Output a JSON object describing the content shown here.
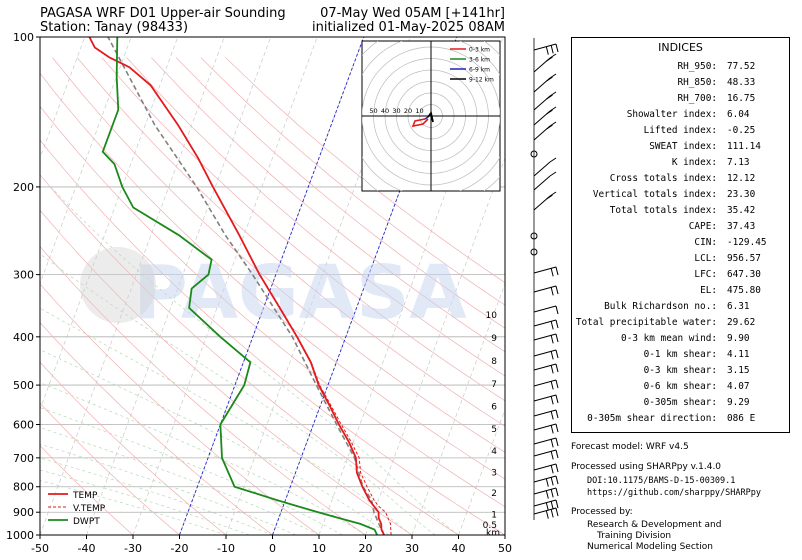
{
  "header": {
    "title_left": "PAGASA WRF D01 Upper-air Sounding",
    "title_right": "07-May Wed 05AM [+141hr]",
    "station": "Station: Tanay (98433)",
    "init": "initialized 01-May-2025 08AM"
  },
  "chart_data": {
    "type": "line",
    "xlim": [
      -50,
      50
    ],
    "plim": [
      1000,
      100
    ],
    "xticks": [
      "-50",
      "-40",
      "-30",
      "-20",
      "-10",
      "0",
      "10",
      "20",
      "30",
      "40",
      "50"
    ],
    "yticks": [
      "100",
      "200",
      "300",
      "400",
      "500",
      "600",
      "700",
      "800",
      "900",
      "1000"
    ],
    "km_ticks": [
      "1",
      "2",
      "3",
      "4",
      "5",
      "6",
      "7",
      "8",
      "9",
      "10"
    ],
    "km_extra": [
      "0.5",
      "km"
    ],
    "legend": [
      "TEMP",
      "V.TEMP",
      "DWPT"
    ],
    "watermark": "PAGASA",
    "colors": {
      "temp": "#e41a1c",
      "vtemp": "#e41a1c",
      "dwpt": "#1a8a1a",
      "parcel": "#808080"
    },
    "temp": [
      [
        1000,
        24
      ],
      [
        975,
        23
      ],
      [
        950,
        22.5
      ],
      [
        925,
        21.5
      ],
      [
        900,
        21
      ],
      [
        875,
        19.5
      ],
      [
        850,
        18
      ],
      [
        800,
        15.5
      ],
      [
        750,
        13.2
      ],
      [
        700,
        11.8
      ],
      [
        650,
        9
      ],
      [
        600,
        5.5
      ],
      [
        550,
        2
      ],
      [
        500,
        -2
      ],
      [
        450,
        -5.5
      ],
      [
        400,
        -10.5
      ],
      [
        350,
        -16.5
      ],
      [
        300,
        -23.5
      ],
      [
        250,
        -31
      ],
      [
        200,
        -40.5
      ],
      [
        175,
        -46
      ],
      [
        150,
        -53
      ],
      [
        125,
        -62
      ],
      [
        115,
        -68
      ],
      [
        110,
        -73
      ],
      [
        105,
        -77
      ],
      [
        100,
        -79
      ]
    ],
    "vtemp": [
      [
        1000,
        25.5
      ],
      [
        975,
        25
      ],
      [
        950,
        24.5
      ],
      [
        925,
        23.5
      ],
      [
        900,
        22.5
      ],
      [
        875,
        20.5
      ],
      [
        850,
        19
      ],
      [
        800,
        16.5
      ],
      [
        750,
        14
      ],
      [
        700,
        12.5
      ],
      [
        650,
        9.5
      ],
      [
        600,
        6
      ],
      [
        550,
        2.3
      ],
      [
        500,
        -1.8
      ],
      [
        450,
        -5.4
      ],
      [
        400,
        -10.4
      ],
      [
        350,
        -16.4
      ],
      [
        300,
        -23.4
      ]
    ],
    "dwpt": [
      [
        1000,
        22.5
      ],
      [
        975,
        21.5
      ],
      [
        950,
        18
      ],
      [
        925,
        13
      ],
      [
        900,
        8
      ],
      [
        875,
        3
      ],
      [
        850,
        -2
      ],
      [
        800,
        -12
      ],
      [
        700,
        -17
      ],
      [
        600,
        -20
      ],
      [
        500,
        -18
      ],
      [
        450,
        -18.5
      ],
      [
        400,
        -27
      ],
      [
        350,
        -36
      ],
      [
        320,
        -37
      ],
      [
        300,
        -34.5
      ],
      [
        280,
        -35
      ],
      [
        250,
        -44
      ],
      [
        220,
        -56
      ],
      [
        200,
        -60
      ],
      [
        180,
        -63.5
      ],
      [
        170,
        -67
      ],
      [
        160,
        -67
      ],
      [
        140,
        -67
      ],
      [
        120,
        -70
      ],
      [
        100,
        -73
      ]
    ],
    "parcel": [
      [
        1000,
        24
      ],
      [
        950,
        22
      ],
      [
        900,
        20
      ],
      [
        850,
        18.5
      ],
      [
        800,
        15.6
      ],
      [
        700,
        11.5
      ],
      [
        600,
        5
      ],
      [
        500,
        -2.5
      ],
      [
        400,
        -11.5
      ],
      [
        300,
        -25
      ],
      [
        250,
        -34
      ],
      [
        200,
        -44
      ],
      [
        150,
        -58
      ],
      [
        100,
        -75
      ]
    ],
    "hodograph": {
      "rings": [
        "10",
        "20",
        "30",
        "40",
        "50"
      ],
      "legend": [
        "0-3 km",
        "3-6 km",
        "6-9 km",
        "9-12 km"
      ],
      "colors": [
        "#e41a1c",
        "#1a8a1a",
        "#2020c0",
        "#000000"
      ]
    }
  },
  "indices": {
    "title": "INDICES",
    "rows": [
      {
        "k": "RH_950:",
        "v": "77.52"
      },
      {
        "k": "RH_850:",
        "v": "48.33"
      },
      {
        "k": "RH_700:",
        "v": "16.75"
      },
      {
        "k": "Showalter index:",
        "v": "6.04"
      },
      {
        "k": "Lifted index:",
        "v": "-0.25"
      },
      {
        "k": "SWEAT index:",
        "v": "111.14"
      },
      {
        "k": "K index:",
        "v": "7.13"
      },
      {
        "k": "Cross totals index:",
        "v": "12.12"
      },
      {
        "k": "Vertical totals index:",
        "v": "23.30"
      },
      {
        "k": "Total totals index:",
        "v": "35.42"
      },
      {
        "k": "CAPE:",
        "v": "37.43"
      },
      {
        "k": "CIN:",
        "v": "-129.45"
      },
      {
        "k": "LCL:",
        "v": "956.57"
      },
      {
        "k": "LFC:",
        "v": "647.30"
      },
      {
        "k": "EL:",
        "v": "475.80"
      },
      {
        "k": "Bulk Richardson no.:",
        "v": "6.31"
      },
      {
        "k": "Total precipitable water:",
        "v": "29.62"
      },
      {
        "k": "0-3 km mean wind:",
        "v": "9.90"
      },
      {
        "k": "0-1 km shear:",
        "v": "4.11"
      },
      {
        "k": "0-3 km shear:",
        "v": "3.15"
      },
      {
        "k": "0-6 km shear:",
        "v": "4.07"
      },
      {
        "k": "0-305m shear:",
        "v": "9.29"
      },
      {
        "k": "0-305m shear direction:",
        "v": "086 E"
      }
    ]
  },
  "footer": {
    "model": "Forecast model: WRF v4.5",
    "processed": "Processed using SHARPpy v.1.4.0",
    "doi": "DOI:10.1175/BAMS-D-15-00309.1",
    "url": "https://github.com/sharppy/SHARPpy",
    "by": "Processed by:",
    "org1": "Research & Development and",
    "org2": "Training Division",
    "org3": "Numerical Modeling Section"
  }
}
